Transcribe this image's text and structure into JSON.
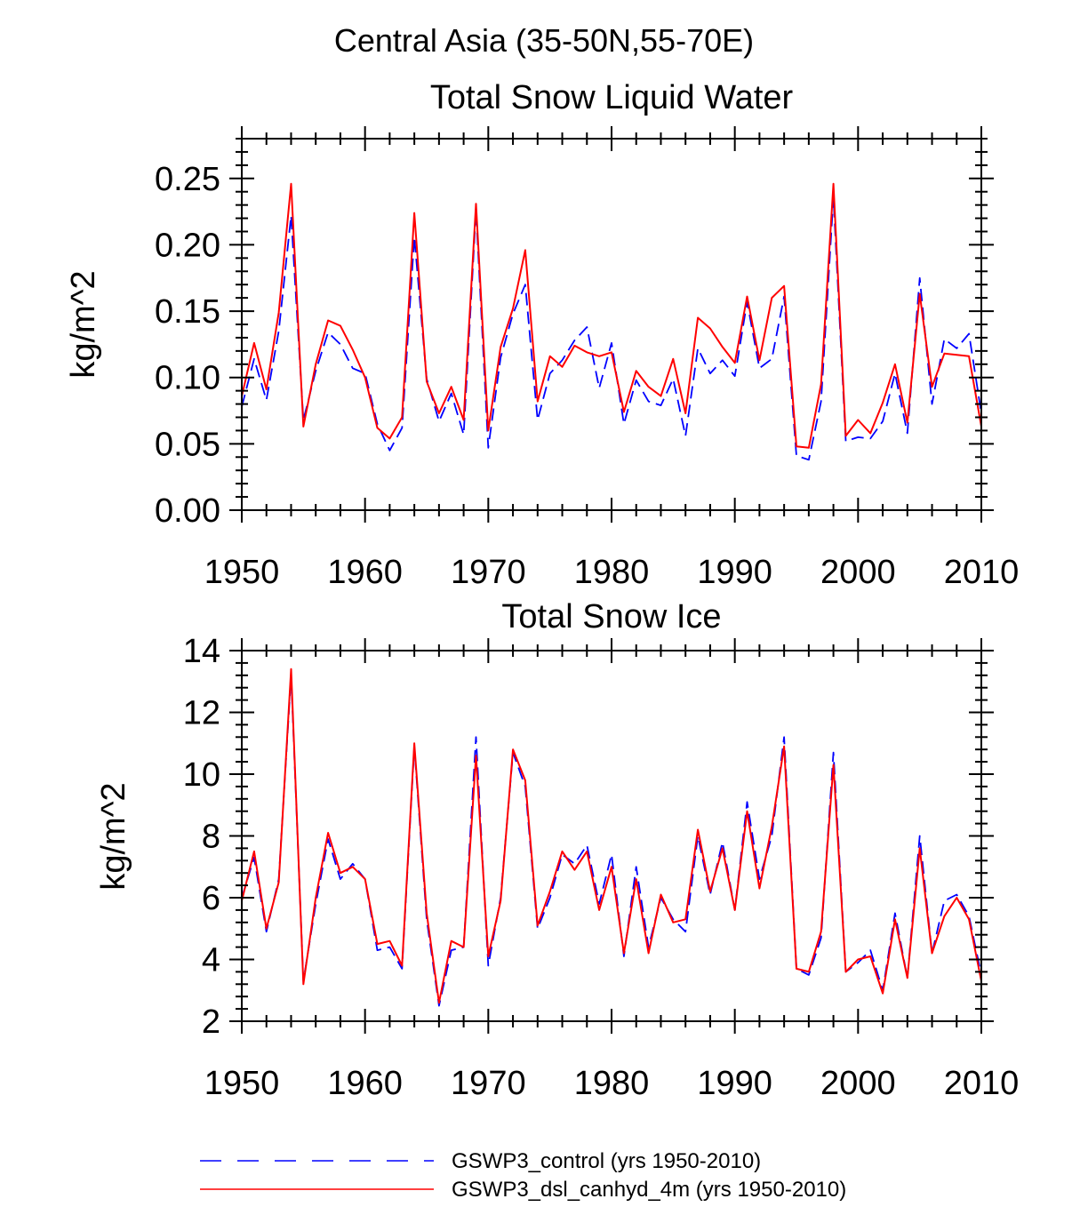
{
  "figure_title": "Central Asia (35-50N,55-70E)",
  "legend": {
    "entries": [
      {
        "label": "GSWP3_control (yrs 1950-2010)",
        "color": "#0000ff",
        "style": "dashed"
      },
      {
        "label": "GSWP3_dsl_canhyd_4m (yrs 1950-2010)",
        "color": "#ff0000",
        "style": "solid"
      }
    ]
  },
  "chart_data": [
    {
      "type": "line",
      "title": "Total Snow Liquid Water",
      "xlabel": "",
      "ylabel": "kg/m^2",
      "xlim": [
        1950,
        2010
      ],
      "ylim": [
        0,
        0.28
      ],
      "xticks": [
        1950,
        1960,
        1970,
        1980,
        1990,
        2000,
        2010
      ],
      "xtick_labels": [
        "1950",
        "1960",
        "1970",
        "1980",
        "1990",
        "2000",
        "2010"
      ],
      "yticks": [
        0,
        0.05,
        0.1,
        0.15,
        0.2,
        0.25
      ],
      "ytick_labels": [
        "0.00",
        "0.05",
        "0.10",
        "0.15",
        "0.20",
        "0.25"
      ],
      "x": [
        1950,
        1951,
        1952,
        1953,
        1954,
        1955,
        1956,
        1957,
        1958,
        1959,
        1960,
        1961,
        1962,
        1963,
        1964,
        1965,
        1966,
        1967,
        1968,
        1969,
        1970,
        1971,
        1972,
        1973,
        1974,
        1975,
        1976,
        1977,
        1978,
        1979,
        1980,
        1981,
        1982,
        1983,
        1984,
        1985,
        1986,
        1987,
        1988,
        1989,
        1990,
        1991,
        1992,
        1993,
        1994,
        1995,
        1996,
        1997,
        1998,
        1999,
        2000,
        2001,
        2002,
        2003,
        2004,
        2005,
        2006,
        2007,
        2008,
        2009,
        2010
      ],
      "series": [
        {
          "name": "GSWP3_control (yrs 1950-2010)",
          "color": "#0000ff",
          "style": "dashed",
          "values": [
            0.078,
            0.114,
            0.083,
            0.135,
            0.222,
            0.068,
            0.105,
            0.134,
            0.125,
            0.107,
            0.103,
            0.065,
            0.045,
            0.062,
            0.206,
            0.099,
            0.067,
            0.088,
            0.057,
            0.226,
            0.047,
            0.115,
            0.148,
            0.17,
            0.068,
            0.103,
            0.113,
            0.128,
            0.138,
            0.092,
            0.126,
            0.065,
            0.098,
            0.082,
            0.079,
            0.099,
            0.056,
            0.122,
            0.103,
            0.113,
            0.101,
            0.157,
            0.107,
            0.114,
            0.161,
            0.041,
            0.038,
            0.082,
            0.236,
            0.052,
            0.055,
            0.054,
            0.067,
            0.103,
            0.058,
            0.175,
            0.08,
            0.129,
            0.122,
            0.133,
            0.073
          ]
        },
        {
          "name": "GSWP3_dsl_canhyd_4m (yrs 1950-2010)",
          "color": "#ff0000",
          "style": "solid",
          "values": [
            0.086,
            0.126,
            0.091,
            0.149,
            0.246,
            0.063,
            0.11,
            0.143,
            0.139,
            0.121,
            0.1,
            0.062,
            0.054,
            0.07,
            0.224,
            0.097,
            0.073,
            0.093,
            0.068,
            0.231,
            0.06,
            0.123,
            0.152,
            0.196,
            0.082,
            0.116,
            0.108,
            0.124,
            0.119,
            0.116,
            0.119,
            0.074,
            0.105,
            0.093,
            0.086,
            0.114,
            0.073,
            0.145,
            0.137,
            0.123,
            0.111,
            0.161,
            0.113,
            0.16,
            0.169,
            0.048,
            0.047,
            0.095,
            0.246,
            0.056,
            0.068,
            0.058,
            0.081,
            0.11,
            0.066,
            0.163,
            0.093,
            0.118,
            0.117,
            0.116,
            0.063
          ]
        }
      ]
    },
    {
      "type": "line",
      "title": "Total Snow Ice",
      "xlabel": "",
      "ylabel": "kg/m^2",
      "xlim": [
        1950,
        2010
      ],
      "ylim": [
        2,
        14
      ],
      "xticks": [
        1950,
        1960,
        1970,
        1980,
        1990,
        2000,
        2010
      ],
      "xtick_labels": [
        "1950",
        "1960",
        "1970",
        "1980",
        "1990",
        "2000",
        "2010"
      ],
      "yticks": [
        2,
        4,
        6,
        8,
        10,
        12,
        14
      ],
      "ytick_labels": [
        "2",
        "4",
        "6",
        "8",
        "10",
        "12",
        "14"
      ],
      "x": [
        1950,
        1951,
        1952,
        1953,
        1954,
        1955,
        1956,
        1957,
        1958,
        1959,
        1960,
        1961,
        1962,
        1963,
        1964,
        1965,
        1966,
        1967,
        1968,
        1969,
        1970,
        1971,
        1972,
        1973,
        1974,
        1975,
        1976,
        1977,
        1978,
        1979,
        1980,
        1981,
        1982,
        1983,
        1984,
        1985,
        1986,
        1987,
        1988,
        1989,
        1990,
        1991,
        1992,
        1993,
        1994,
        1995,
        1996,
        1997,
        1998,
        1999,
        2000,
        2001,
        2002,
        2003,
        2004,
        2005,
        2006,
        2007,
        2008,
        2009,
        2010
      ],
      "series": [
        {
          "name": "GSWP3_control (yrs 1950-2010)",
          "color": "#0000ff",
          "style": "dashed",
          "values": [
            6.0,
            7.3,
            4.9,
            6.6,
            13.2,
            3.3,
            5.8,
            7.9,
            6.6,
            7.1,
            6.6,
            4.3,
            4.4,
            3.7,
            10.9,
            5.3,
            2.5,
            4.3,
            4.4,
            11.2,
            3.8,
            6.0,
            10.7,
            9.6,
            5.0,
            6.0,
            7.4,
            7.1,
            7.7,
            5.8,
            7.4,
            4.1,
            7.0,
            4.4,
            6.0,
            5.3,
            4.9,
            8.0,
            6.1,
            7.8,
            5.6,
            9.1,
            6.6,
            8.0,
            11.2,
            3.7,
            3.5,
            4.7,
            10.7,
            3.6,
            3.9,
            4.3,
            3.0,
            5.5,
            3.4,
            8.0,
            4.2,
            5.9,
            6.1,
            5.4,
            3.5
          ]
        },
        {
          "name": "GSWP3_dsl_canhyd_4m (yrs 1950-2010)",
          "color": "#ff0000",
          "style": "solid",
          "values": [
            5.9,
            7.5,
            5.0,
            6.5,
            13.4,
            3.2,
            6.0,
            8.1,
            6.8,
            7.0,
            6.6,
            4.5,
            4.6,
            3.8,
            11.0,
            5.5,
            2.6,
            4.6,
            4.4,
            10.6,
            4.1,
            5.9,
            10.8,
            9.8,
            5.1,
            6.2,
            7.5,
            6.9,
            7.5,
            5.6,
            7.0,
            4.2,
            6.6,
            4.2,
            6.1,
            5.2,
            5.3,
            8.2,
            6.2,
            7.6,
            5.6,
            8.8,
            6.3,
            8.3,
            10.9,
            3.7,
            3.6,
            4.9,
            10.3,
            3.6,
            4.0,
            4.1,
            2.9,
            5.3,
            3.4,
            7.6,
            4.2,
            5.4,
            6.0,
            5.3,
            3.3
          ]
        }
      ]
    }
  ]
}
